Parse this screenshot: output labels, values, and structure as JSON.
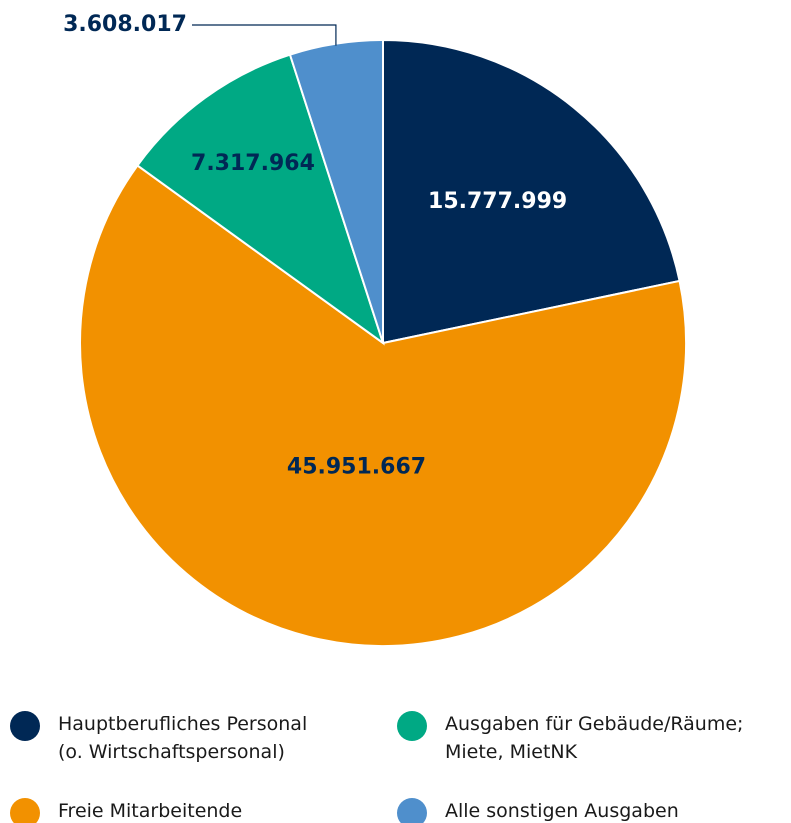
{
  "chart_data": {
    "type": "pie",
    "categories": [
      "Hauptberufliches Personal\n(o. Wirtschaftspersonal)",
      "Freie Mitarbeitende",
      "Ausgaben für Gebäude/Räume;\nMiete, MietNK",
      "Alle sonstigen Ausgaben"
    ],
    "values": [
      15777999,
      45951667,
      7317964,
      3608017
    ],
    "value_labels": [
      "15.777.999",
      "45.951.667",
      "7.317.964",
      "3.608.017"
    ],
    "colors": [
      "#002855",
      "#f29100",
      "#00a984",
      "#4f8fcc"
    ]
  }
}
